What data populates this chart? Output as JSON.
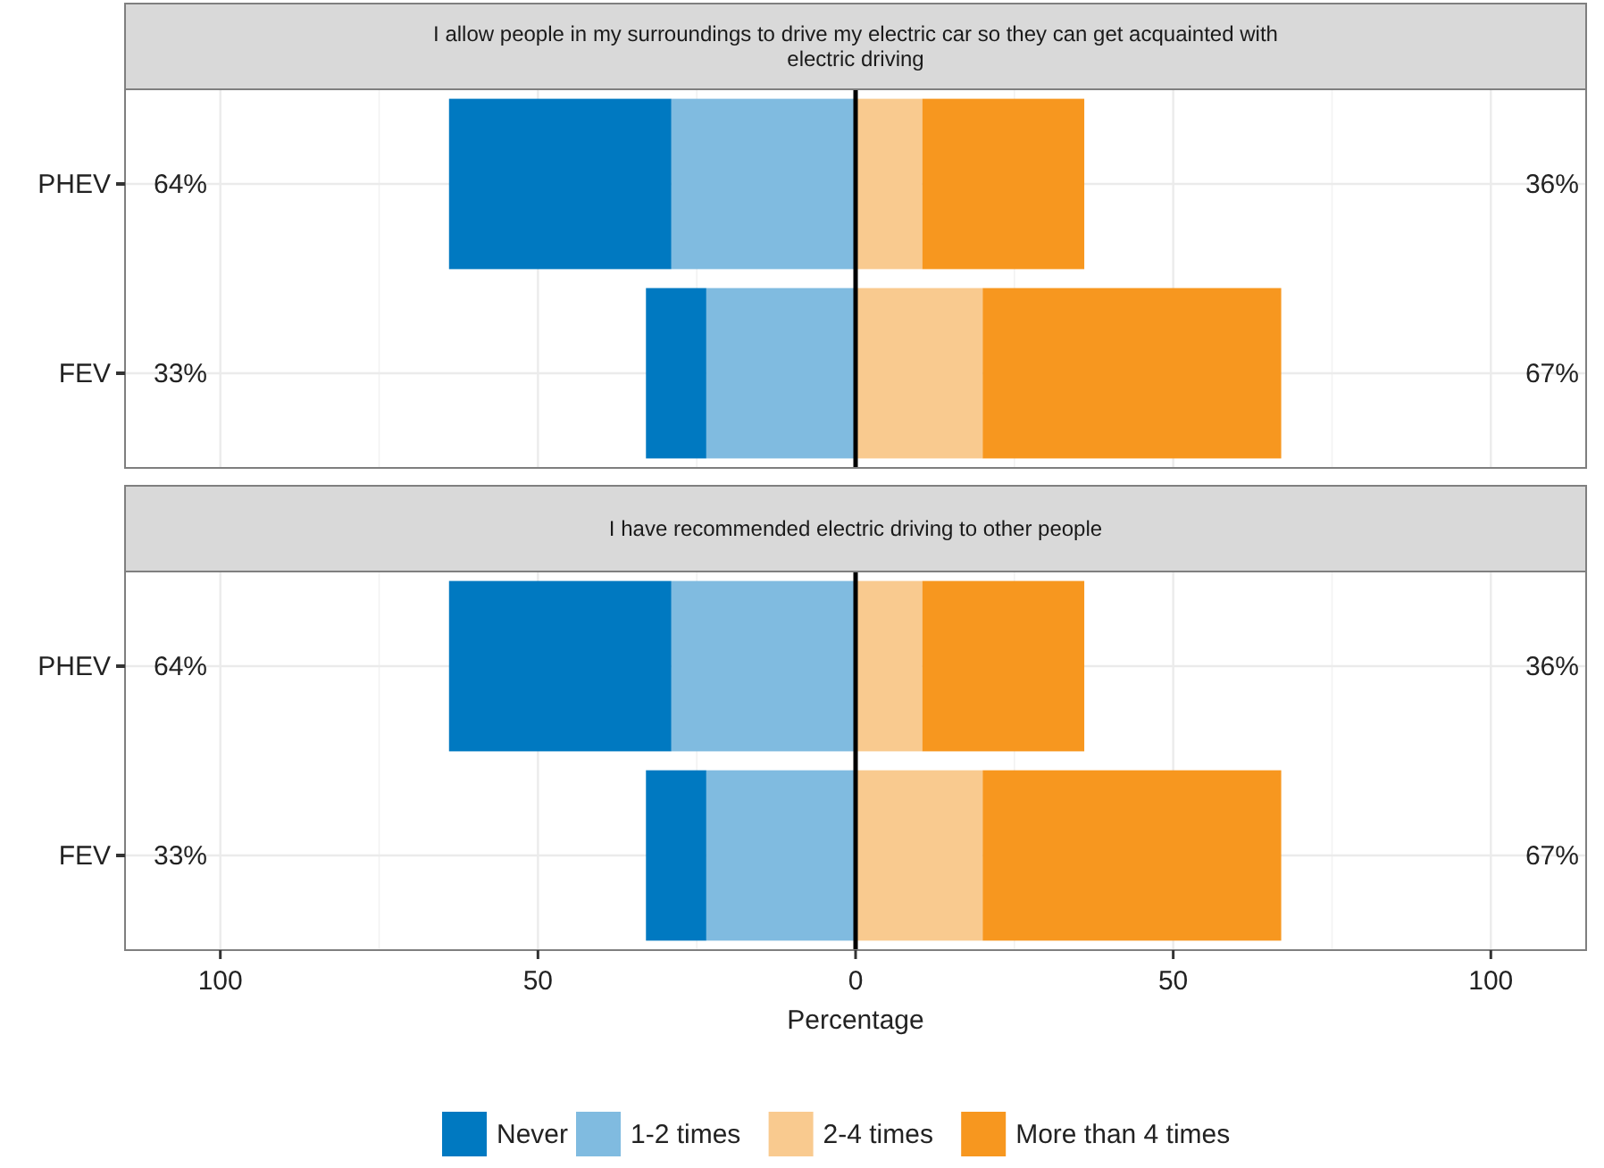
{
  "chart_data": [
    {
      "type": "bar",
      "orientation": "horizontal",
      "stacked": true,
      "title": "I allow people in my surroundings to drive my electric car so they can get acquainted with electric driving",
      "categories": [
        "PHEV",
        "FEV"
      ],
      "series": [
        {
          "color": "#0079c1",
          "values": [
            -35,
            -9.5
          ]
        },
        {
          "color": "#80bbe0",
          "values": [
            -29,
            -23.5
          ]
        },
        {
          "color": "#f9ca8f",
          "values": [
            10.5,
            20
          ]
        },
        {
          "color": "#f7971f",
          "values": [
            25.5,
            47
          ]
        }
      ],
      "xlim": [
        -115,
        115
      ],
      "grid": true,
      "tick_labels": "y",
      "annotations": [
        "64%",
        "36%",
        "33%",
        "67%"
      ]
    },
    {
      "type": "bar",
      "orientation": "horizontal",
      "stacked": true,
      "title": "I have recommended electric driving to other people",
      "xlabel": "Percentage",
      "categories": [
        "PHEV",
        "FEV"
      ],
      "series": [
        {
          "name": "Never",
          "color": "#0079c1",
          "values": [
            -35,
            -9.5
          ]
        },
        {
          "name": "1-2 times",
          "color": "#80bbe0",
          "values": [
            -29,
            -23.5
          ]
        },
        {
          "name": "2-4 times",
          "color": "#f9ca8f",
          "values": [
            10.5,
            20
          ]
        },
        {
          "name": "More than 4 times",
          "color": "#f7971f",
          "values": [
            25.5,
            47
          ]
        }
      ],
      "xlim": [
        -115,
        115
      ],
      "xticks": [
        {
          "value": -100,
          "label": "100"
        },
        {
          "value": -50,
          "label": "50"
        },
        0,
        50,
        100
      ],
      "grid": true,
      "legend": "bottom",
      "annotations": [
        "64%",
        "36%",
        "33%",
        "67%"
      ]
    }
  ]
}
